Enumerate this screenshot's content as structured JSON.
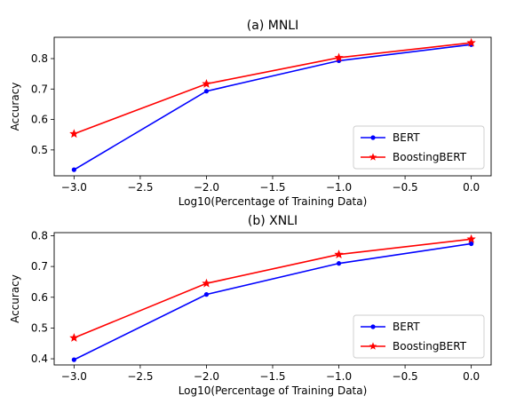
{
  "chart_data": [
    {
      "type": "line",
      "title": "(a) MNLI",
      "xlabel": "Log10(Percentage of Training Data)",
      "ylabel": "Accuracy",
      "x": [
        -3.0,
        -2.0,
        -1.0,
        0.0
      ],
      "xlim": [
        -3.15,
        0.15
      ],
      "ylim": [
        0.415,
        0.87
      ],
      "xticks": [
        -3.0,
        -2.5,
        -2.0,
        -1.5,
        -1.0,
        -0.5,
        0.0
      ],
      "xtick_labels": [
        "−3.0",
        "−2.5",
        "−2.0",
        "−1.5",
        "−1.0",
        "−0.5",
        "0.0"
      ],
      "yticks": [
        0.5,
        0.6,
        0.7,
        0.8
      ],
      "ytick_labels": [
        "0.5",
        "0.6",
        "0.7",
        "0.8"
      ],
      "grid": false,
      "legend_position": "lower-right",
      "series": [
        {
          "name": "BERT",
          "values": [
            0.435,
            0.693,
            0.793,
            0.846
          ],
          "color": "#0000ff",
          "marker": "dot"
        },
        {
          "name": "BoostingBERT",
          "values": [
            0.553,
            0.717,
            0.803,
            0.852
          ],
          "color": "#ff0000",
          "marker": "star"
        }
      ]
    },
    {
      "type": "line",
      "title": "(b) XNLI",
      "xlabel": "Log10(Percentage of Training Data)",
      "ylabel": "Accuracy",
      "x": [
        -3.0,
        -2.0,
        -1.0,
        0.0
      ],
      "xlim": [
        -3.15,
        0.15
      ],
      "ylim": [
        0.38,
        0.81
      ],
      "xticks": [
        -3.0,
        -2.5,
        -2.0,
        -1.5,
        -1.0,
        -0.5,
        0.0
      ],
      "xtick_labels": [
        "−3.0",
        "−2.5",
        "−2.0",
        "−1.5",
        "−1.0",
        "−0.5",
        "0.0"
      ],
      "yticks": [
        0.4,
        0.5,
        0.6,
        0.7,
        0.8
      ],
      "ytick_labels": [
        "0.4",
        "0.5",
        "0.6",
        "0.7",
        "0.8"
      ],
      "grid": false,
      "legend_position": "lower-right",
      "series": [
        {
          "name": "BERT",
          "values": [
            0.397,
            0.609,
            0.71,
            0.774
          ],
          "color": "#0000ff",
          "marker": "dot"
        },
        {
          "name": "BoostingBERT",
          "values": [
            0.468,
            0.645,
            0.739,
            0.789
          ],
          "color": "#ff0000",
          "marker": "star"
        }
      ]
    }
  ]
}
